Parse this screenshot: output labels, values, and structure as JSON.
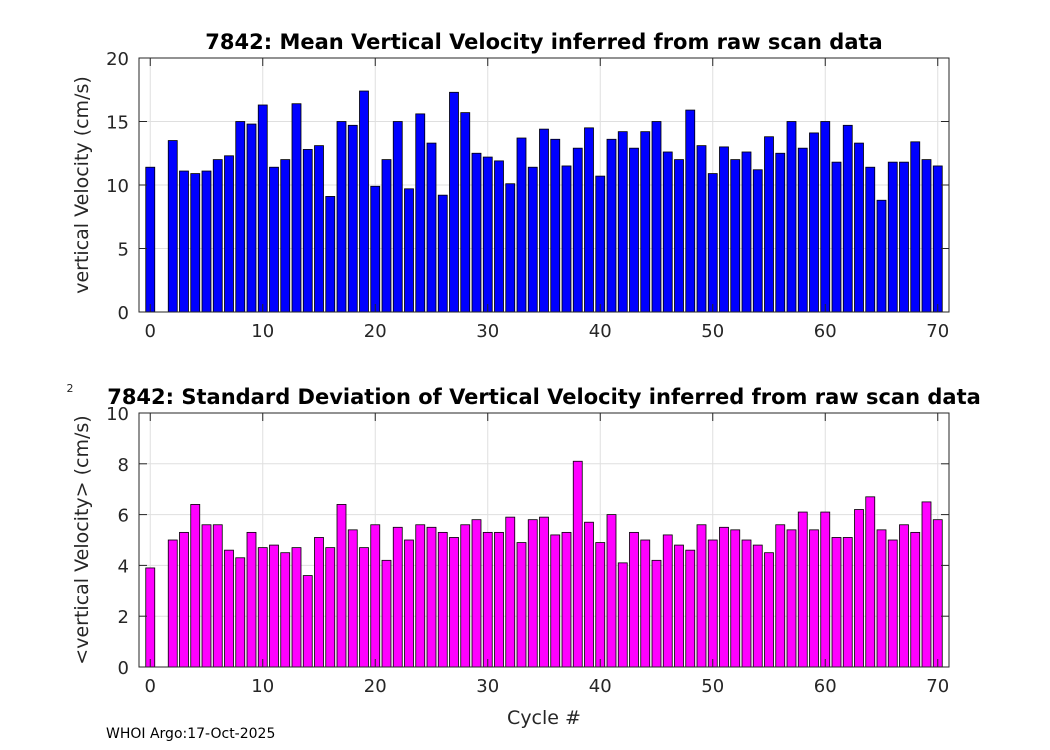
{
  "chart_data": [
    {
      "type": "bar",
      "title": "7842: Mean Vertical Velocity inferred from raw scan data",
      "xlabel": "",
      "ylabel": "vertical Velocity (cm/s)",
      "xlim": [
        -1,
        71
      ],
      "ylim": [
        0,
        20
      ],
      "xticks": [
        0,
        10,
        20,
        30,
        40,
        50,
        60,
        70
      ],
      "yticks": [
        0,
        5,
        10,
        15,
        20
      ],
      "grid": true,
      "bar_color": "#0000ff",
      "x": [
        0,
        2,
        3,
        4,
        5,
        6,
        7,
        8,
        9,
        10,
        11,
        12,
        13,
        14,
        15,
        16,
        17,
        18,
        19,
        20,
        21,
        22,
        23,
        24,
        25,
        26,
        27,
        28,
        29,
        30,
        31,
        32,
        33,
        34,
        35,
        36,
        37,
        38,
        39,
        40,
        41,
        42,
        43,
        44,
        45,
        46,
        47,
        48,
        49,
        50,
        51,
        52,
        53,
        54,
        55,
        56,
        57,
        58,
        59,
        60,
        61,
        62,
        63,
        64,
        65,
        66,
        67,
        68,
        69,
        70
      ],
      "values": [
        11.4,
        13.5,
        11.1,
        10.9,
        11.1,
        12.0,
        12.3,
        15.0,
        14.8,
        16.3,
        11.4,
        12.0,
        16.4,
        12.8,
        13.1,
        9.1,
        15.0,
        14.7,
        17.4,
        9.9,
        12.0,
        15.0,
        9.7,
        15.6,
        13.3,
        9.2,
        17.3,
        15.7,
        12.5,
        12.2,
        11.9,
        10.1,
        13.7,
        11.4,
        14.4,
        13.6,
        11.5,
        12.9,
        14.5,
        10.7,
        13.6,
        14.2,
        12.9,
        14.2,
        15.0,
        12.6,
        12.0,
        15.9,
        13.1,
        10.9,
        13.0,
        12.0,
        12.6,
        11.2,
        13.8,
        12.5,
        15.0,
        12.9,
        14.1,
        15.0,
        11.8,
        14.7,
        13.3,
        11.4,
        8.8,
        11.8,
        11.8,
        13.4,
        12.0,
        11.5
      ]
    },
    {
      "type": "bar",
      "title": "7842: Standard Deviation of Vertical Velocity inferred from raw scan data",
      "xlabel": "Cycle #",
      "ylabel": "<vertical Velocity> (cm/s)",
      "y_exponent_mark": "2",
      "xlim": [
        -1,
        71
      ],
      "ylim": [
        0,
        10
      ],
      "xticks": [
        0,
        10,
        20,
        30,
        40,
        50,
        60,
        70
      ],
      "yticks": [
        0,
        2,
        4,
        6,
        8,
        10
      ],
      "grid": true,
      "bar_color": "#ff00ff",
      "x": [
        0,
        2,
        3,
        4,
        5,
        6,
        7,
        8,
        9,
        10,
        11,
        12,
        13,
        14,
        15,
        16,
        17,
        18,
        19,
        20,
        21,
        22,
        23,
        24,
        25,
        26,
        27,
        28,
        29,
        30,
        31,
        32,
        33,
        34,
        35,
        36,
        37,
        38,
        39,
        40,
        41,
        42,
        43,
        44,
        45,
        46,
        47,
        48,
        49,
        50,
        51,
        52,
        53,
        54,
        55,
        56,
        57,
        58,
        59,
        60,
        61,
        62,
        63,
        64,
        65,
        66,
        67,
        68,
        69,
        70
      ],
      "values": [
        3.9,
        5.0,
        5.3,
        6.4,
        5.6,
        5.6,
        4.6,
        4.3,
        5.3,
        4.7,
        4.8,
        4.5,
        4.7,
        3.6,
        5.1,
        4.7,
        6.4,
        5.4,
        4.7,
        5.6,
        4.2,
        5.5,
        5.0,
        5.6,
        5.5,
        5.3,
        5.1,
        5.6,
        5.8,
        5.3,
        5.3,
        5.9,
        4.9,
        5.8,
        5.9,
        5.2,
        5.3,
        8.1,
        5.7,
        4.9,
        6.0,
        4.1,
        5.3,
        5.0,
        4.2,
        5.2,
        4.8,
        4.6,
        5.6,
        5.0,
        5.5,
        5.4,
        5.0,
        4.8,
        4.5,
        5.6,
        5.4,
        6.1,
        5.4,
        6.1,
        5.1,
        5.1,
        6.2,
        6.7,
        5.4,
        5.0,
        5.6,
        5.3,
        6.5,
        5.8
      ]
    }
  ],
  "footer": "WHOI Argo:17-Oct-2025"
}
